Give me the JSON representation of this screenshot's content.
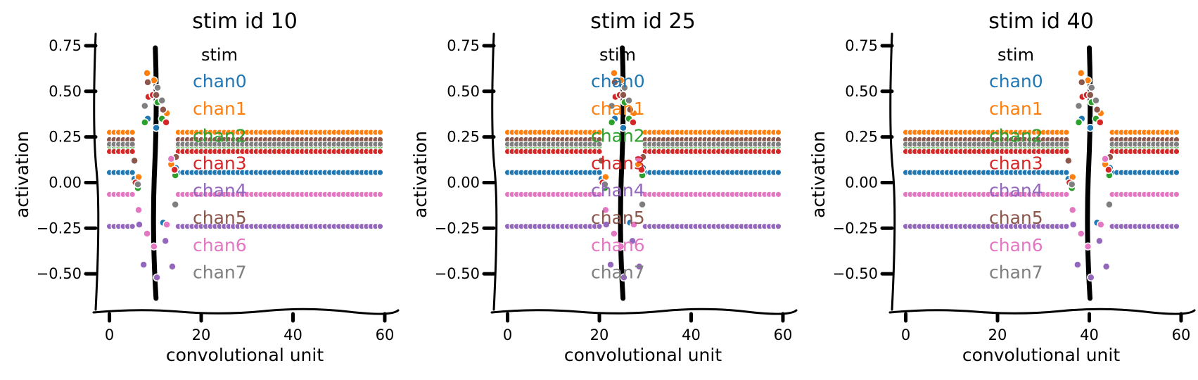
{
  "chart_data": [
    {
      "type": "scatter",
      "title": "stim id 10",
      "xlabel": "convolutional unit",
      "ylabel": "activation",
      "xlim": [
        -3,
        62
      ],
      "ylim": [
        -0.65,
        0.8
      ],
      "xticks": [
        0,
        20,
        40,
        60
      ],
      "xtick_labels": [
        "0",
        "20",
        "40",
        "60"
      ],
      "yticks": [
        0.75,
        0.5,
        0.25,
        0.0,
        -0.25,
        -0.5
      ],
      "ytick_labels": [
        "0.75",
        "0.50",
        "0.25",
        "0.00",
        "−0.25",
        "−0.50"
      ],
      "stim_x": 10,
      "legend": {
        "title": "stim",
        "placement": "right"
      },
      "series": [
        {
          "name": "chan0",
          "color": "#1f77b4",
          "baseline": 0.055,
          "peak": [
            0.02,
            0.35,
            0.3,
            -0.22,
            0.08
          ]
        },
        {
          "name": "chan1",
          "color": "#ff7f0e",
          "baseline": 0.275,
          "peak": [
            0.03,
            0.6,
            0.56,
            0.38,
            0.1
          ]
        },
        {
          "name": "chan2",
          "color": "#2ca02c",
          "baseline": 0.2,
          "peak": [
            -0.03,
            0.33,
            0.44,
            0.35,
            0.04
          ]
        },
        {
          "name": "chan3",
          "color": "#d62728",
          "baseline": 0.17,
          "peak": [
            0.0,
            0.47,
            0.48,
            0.33,
            0.07
          ]
        },
        {
          "name": "chan4",
          "color": "#9467bd",
          "baseline": -0.24,
          "peak": [
            -0.23,
            -0.45,
            -0.52,
            -0.32,
            -0.46
          ]
        },
        {
          "name": "chan5",
          "color": "#8c564b",
          "baseline": 0.235,
          "peak": [
            0.12,
            0.55,
            0.48,
            0.4,
            0.14
          ]
        },
        {
          "name": "chan6",
          "color": "#e377c2",
          "baseline": -0.065,
          "peak": [
            -0.15,
            -0.28,
            -0.35,
            -0.23,
            0.13
          ]
        },
        {
          "name": "chan7",
          "color": "#7f7f7f",
          "baseline": 0.21,
          "peak": [
            -0.01,
            0.42,
            0.52,
            0.45,
            -0.12
          ]
        }
      ]
    },
    {
      "type": "scatter",
      "title": "stim id 25",
      "xlabel": "convolutional unit",
      "ylabel": "activation",
      "xlim": [
        -3,
        62
      ],
      "ylim": [
        -0.65,
        0.8
      ],
      "xticks": [
        0,
        20,
        40,
        60
      ],
      "xtick_labels": [
        "0",
        "20",
        "40",
        "60"
      ],
      "yticks": [
        0.75,
        0.5,
        0.25,
        0.0,
        -0.25,
        -0.5
      ],
      "ytick_labels": [
        "0.75",
        "0.50",
        "0.25",
        "0.00",
        "−0.25",
        "−0.50"
      ],
      "stim_x": 25,
      "legend": {
        "title": "stim",
        "placement": "right"
      },
      "series": [
        {
          "name": "chan0",
          "color": "#1f77b4",
          "baseline": 0.055,
          "peak": [
            0.02,
            0.35,
            0.3,
            -0.22,
            0.08
          ]
        },
        {
          "name": "chan1",
          "color": "#ff7f0e",
          "baseline": 0.275,
          "peak": [
            0.03,
            0.6,
            0.56,
            0.38,
            0.1
          ]
        },
        {
          "name": "chan2",
          "color": "#2ca02c",
          "baseline": 0.2,
          "peak": [
            -0.03,
            0.33,
            0.44,
            0.35,
            0.04
          ]
        },
        {
          "name": "chan3",
          "color": "#d62728",
          "baseline": 0.17,
          "peak": [
            0.0,
            0.47,
            0.48,
            0.33,
            0.07
          ]
        },
        {
          "name": "chan4",
          "color": "#9467bd",
          "baseline": -0.24,
          "peak": [
            -0.23,
            -0.45,
            -0.52,
            -0.32,
            -0.46
          ]
        },
        {
          "name": "chan5",
          "color": "#8c564b",
          "baseline": 0.235,
          "peak": [
            0.12,
            0.55,
            0.48,
            0.4,
            0.14
          ]
        },
        {
          "name": "chan6",
          "color": "#e377c2",
          "baseline": -0.065,
          "peak": [
            -0.15,
            -0.28,
            -0.35,
            -0.23,
            0.13
          ]
        },
        {
          "name": "chan7",
          "color": "#7f7f7f",
          "baseline": 0.21,
          "peak": [
            -0.01,
            0.42,
            0.52,
            0.45,
            -0.12
          ]
        }
      ]
    },
    {
      "type": "scatter",
      "title": "stim id 40",
      "xlabel": "convolutional unit",
      "ylabel": "activation",
      "xlim": [
        -3,
        62
      ],
      "ylim": [
        -0.65,
        0.8
      ],
      "xticks": [
        0,
        20,
        40,
        60
      ],
      "xtick_labels": [
        "0",
        "20",
        "40",
        "60"
      ],
      "yticks": [
        0.75,
        0.5,
        0.25,
        0.0,
        -0.25,
        -0.5
      ],
      "ytick_labels": [
        "0.75",
        "0.50",
        "0.25",
        "0.00",
        "−0.25",
        "−0.50"
      ],
      "stim_x": 40,
      "legend": {
        "title": "stim",
        "placement": "right"
      },
      "series": [
        {
          "name": "chan0",
          "color": "#1f77b4",
          "baseline": 0.055,
          "peak": [
            0.02,
            0.35,
            0.3,
            -0.22,
            0.08
          ]
        },
        {
          "name": "chan1",
          "color": "#ff7f0e",
          "baseline": 0.275,
          "peak": [
            0.03,
            0.6,
            0.56,
            0.38,
            0.1
          ]
        },
        {
          "name": "chan2",
          "color": "#2ca02c",
          "baseline": 0.2,
          "peak": [
            -0.03,
            0.33,
            0.44,
            0.35,
            0.04
          ]
        },
        {
          "name": "chan3",
          "color": "#d62728",
          "baseline": 0.17,
          "peak": [
            0.0,
            0.47,
            0.48,
            0.33,
            0.07
          ]
        },
        {
          "name": "chan4",
          "color": "#9467bd",
          "baseline": -0.24,
          "peak": [
            -0.23,
            -0.45,
            -0.52,
            -0.32,
            -0.46
          ]
        },
        {
          "name": "chan5",
          "color": "#8c564b",
          "baseline": 0.235,
          "peak": [
            0.12,
            0.55,
            0.48,
            0.4,
            0.14
          ]
        },
        {
          "name": "chan6",
          "color": "#e377c2",
          "baseline": -0.065,
          "peak": [
            -0.15,
            -0.28,
            -0.35,
            -0.23,
            0.13
          ]
        },
        {
          "name": "chan7",
          "color": "#7f7f7f",
          "baseline": 0.21,
          "peak": [
            -0.01,
            0.42,
            0.52,
            0.45,
            -0.12
          ]
        }
      ]
    }
  ]
}
